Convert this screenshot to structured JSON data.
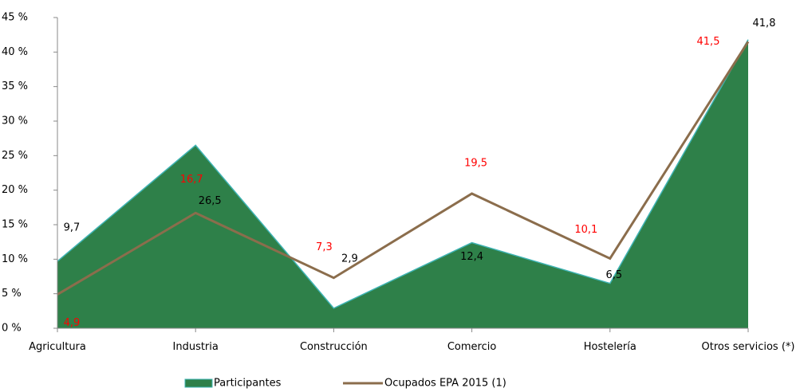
{
  "chart_data": {
    "type": "area-line",
    "categories": [
      "Agricultura",
      "Industria",
      "Construcción",
      "Comercio",
      "Hostelería",
      "Otros servicios (*)"
    ],
    "series": [
      {
        "name": "Participantes",
        "type": "area",
        "color": "#2e8049",
        "edge_color": "#3fb4b4",
        "values": [
          9.7,
          26.5,
          2.9,
          12.4,
          6.5,
          41.8
        ],
        "value_labels": [
          "9,7",
          "26,5",
          "2,9",
          "12,4",
          "6,5",
          "41,8"
        ],
        "label_color": "#000000"
      },
      {
        "name": "Ocupados EPA 2015 (1)",
        "type": "line",
        "color": "#8b6d4c",
        "values": [
          4.9,
          16.7,
          7.3,
          19.5,
          10.1,
          41.5
        ],
        "value_labels": [
          "4,9",
          "16,7",
          "7,3",
          "19,5",
          "10,1",
          "41,5"
        ],
        "label_color": "#ff0000"
      }
    ],
    "ylim": [
      0,
      45
    ],
    "yticks": [
      {
        "value": 0,
        "label": "0 %"
      },
      {
        "value": 5,
        "label": "5 %"
      },
      {
        "value": 10,
        "label": "10 %"
      },
      {
        "value": 15,
        "label": "15 %"
      },
      {
        "value": 20,
        "label": "20 %"
      },
      {
        "value": 25,
        "label": "25 %"
      },
      {
        "value": 30,
        "label": "30 %"
      },
      {
        "value": 35,
        "label": "35 %"
      },
      {
        "value": 40,
        "label": "40 %"
      },
      {
        "value": 45,
        "label": "45 %"
      }
    ],
    "legend": "bottom"
  }
}
